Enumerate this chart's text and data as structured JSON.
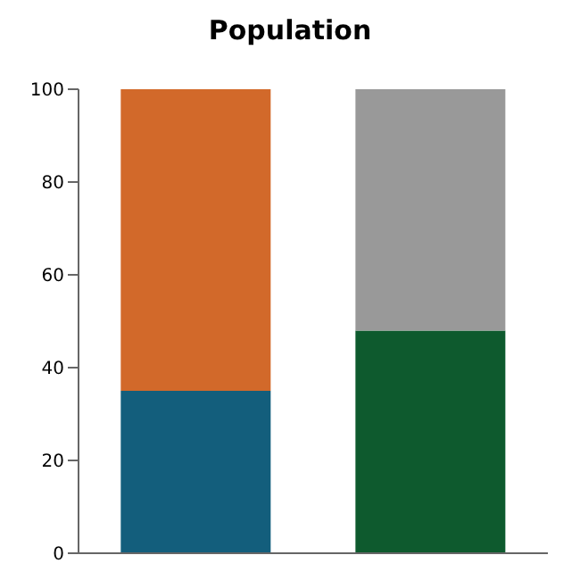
{
  "chart_data": {
    "type": "bar",
    "title": "Population",
    "categories": [
      null,
      null
    ],
    "stacked": true,
    "series": [
      {
        "colors": [
          "#135e7c",
          "#0e5a2e"
        ],
        "values": [
          35,
          48
        ]
      },
      {
        "colors": [
          "#d2692a",
          "#999999"
        ],
        "values": [
          65,
          52
        ]
      }
    ],
    "ylim": [
      0,
      100
    ],
    "yticks": [
      0,
      20,
      40,
      60,
      80,
      100
    ]
  }
}
